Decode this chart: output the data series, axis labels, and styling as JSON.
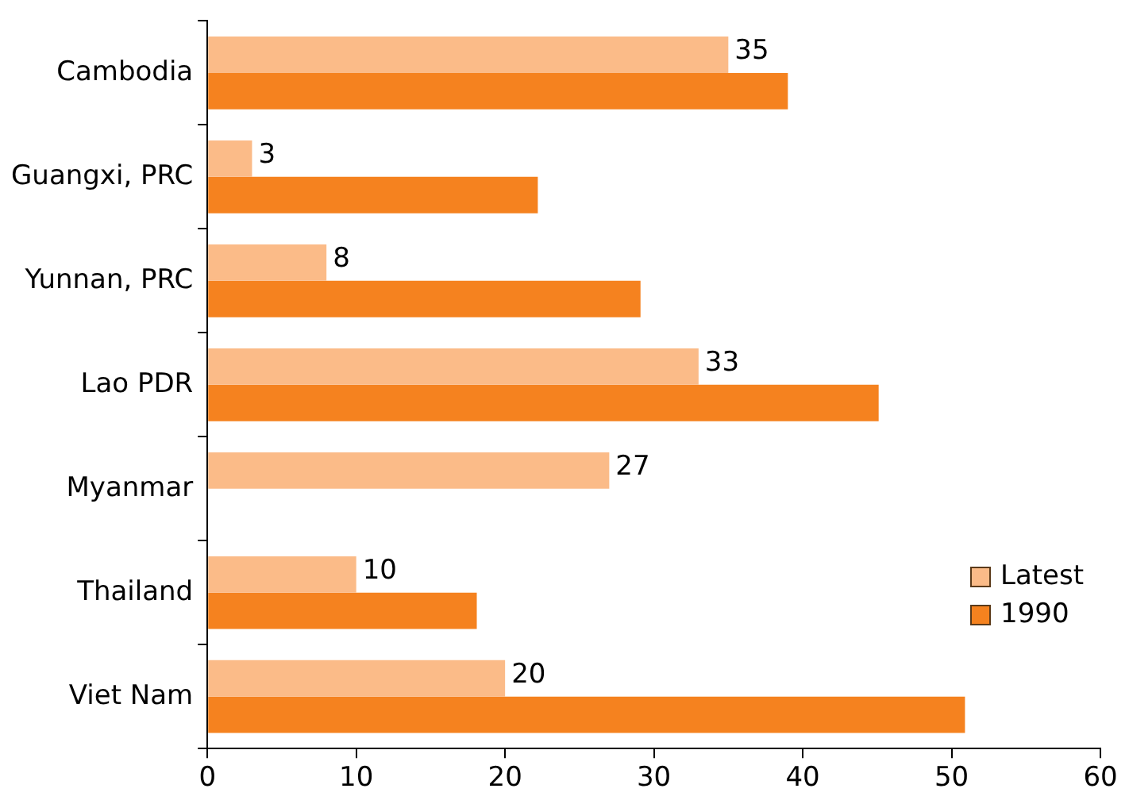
{
  "chart_data": {
    "type": "bar",
    "orientation": "horizontal",
    "categories": [
      "Cambodia",
      "Guangxi, PRC",
      "Yunnan, PRC",
      "Lao PDR",
      "Myanmar",
      "Thailand",
      "Viet Nam"
    ],
    "series": [
      {
        "name": "Latest",
        "color": "#fbbb88",
        "values": [
          35,
          3,
          8,
          33,
          27,
          10,
          20
        ],
        "value_labels": [
          "35",
          "3",
          "8",
          "33",
          "27",
          "10",
          "20"
        ]
      },
      {
        "name": "1990",
        "color": "#f5821f",
        "values": [
          39,
          22.2,
          29.1,
          45.1,
          null,
          18.1,
          50.9
        ]
      }
    ],
    "xlim": [
      0,
      60
    ],
    "xticks": [
      0,
      10,
      20,
      30,
      40,
      50,
      60
    ],
    "grid": false,
    "legend": "bottom right"
  }
}
